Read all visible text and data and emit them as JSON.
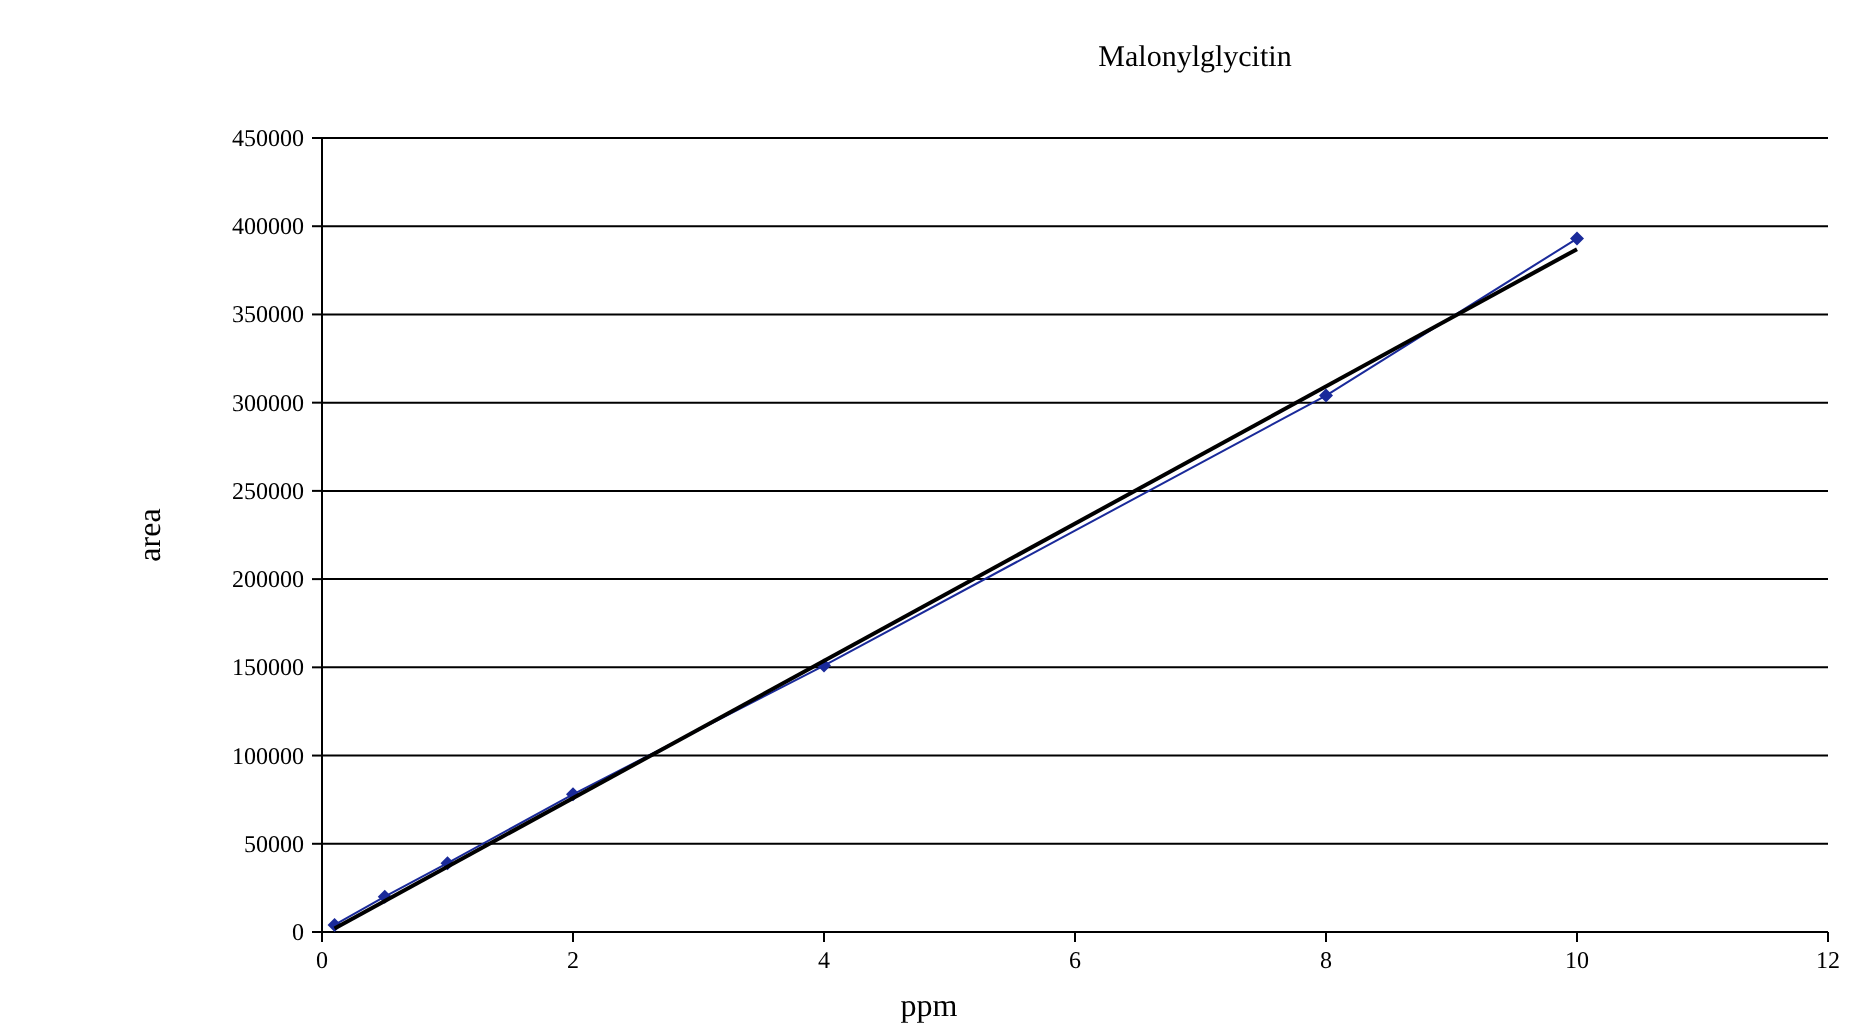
{
  "chart_data": {
    "type": "scatter",
    "title": "Malonylglycitin",
    "xlabel": "ppm",
    "ylabel": "area",
    "xlim": [
      0,
      12
    ],
    "xticks": [
      0,
      2,
      4,
      6,
      8,
      10,
      12
    ],
    "ylim": [
      0,
      450000
    ],
    "yticks": [
      0,
      50000,
      100000,
      150000,
      200000,
      250000,
      300000,
      350000,
      400000,
      450000
    ],
    "grid": "y",
    "series": [
      {
        "type": "line",
        "marker": "diamond",
        "color": "#1a2a9a",
        "x": [
          0.1,
          0.5,
          1,
          2,
          4,
          8,
          10
        ],
        "values": [
          4000,
          20000,
          39000,
          78000,
          151000,
          304000,
          393000
        ]
      },
      {
        "type": "line",
        "marker": "none",
        "color": "#000000",
        "x": [
          0.1,
          10
        ],
        "values": [
          2000,
          387000
        ]
      }
    ]
  }
}
